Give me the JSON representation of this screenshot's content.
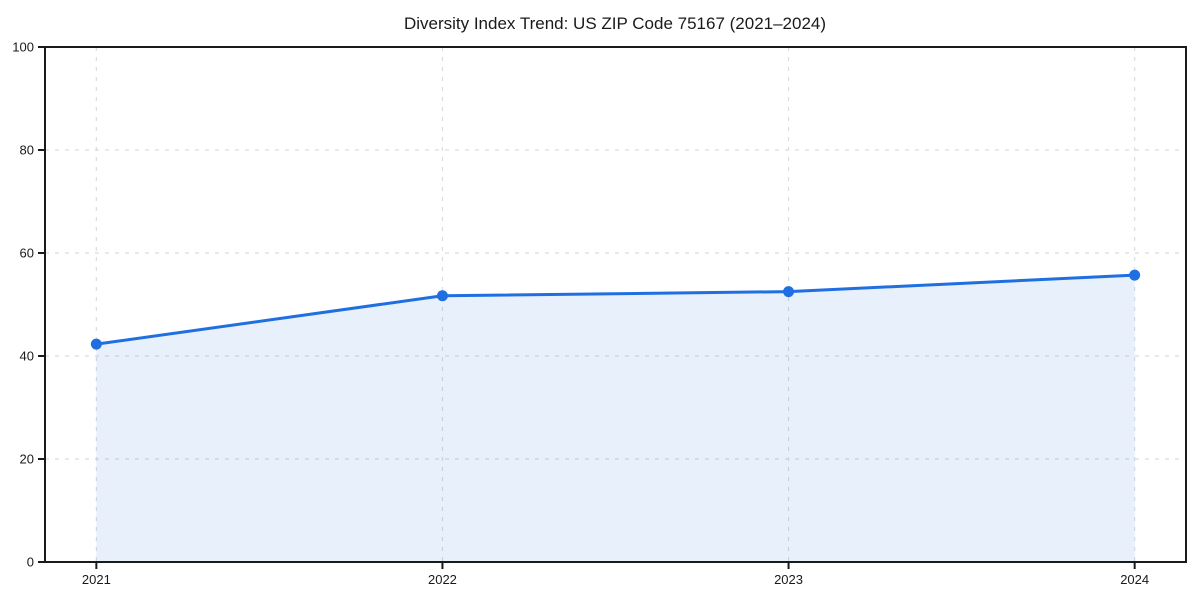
{
  "chart_data": {
    "type": "line",
    "title": "Diversity Index Trend: US ZIP Code 75167 (2021–2024)",
    "categories": [
      "2021",
      "2022",
      "2023",
      "2024"
    ],
    "values": [
      42.3,
      51.7,
      52.5,
      55.7
    ],
    "xlabel": "",
    "ylabel": "",
    "ylim": [
      0,
      100
    ],
    "yticks": [
      0,
      20,
      40,
      60,
      80,
      100
    ],
    "grid": true,
    "grid_style": "dashed",
    "legend": "none",
    "area_fill": true,
    "markers": true
  },
  "colors": {
    "line": "#1f6fe0",
    "area_fill": "#1f6fe0",
    "area_fill_opacity": "0.10",
    "grid": "#dcdcdc",
    "axis": "#1a1a1a",
    "text": "#1a1a1a",
    "background": "#ffffff"
  }
}
